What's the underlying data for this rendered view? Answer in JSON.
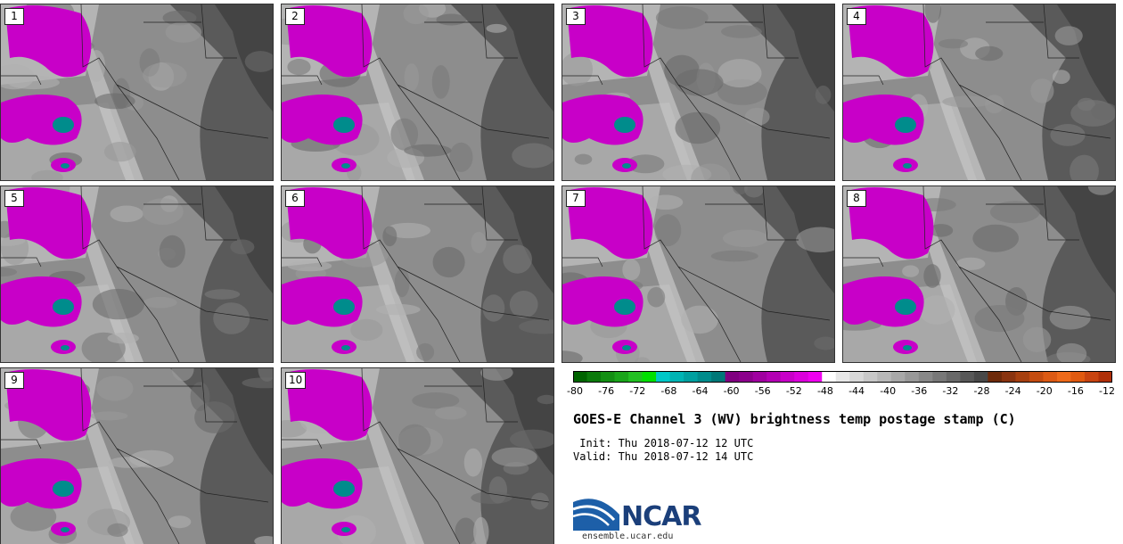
{
  "panels": [
    "1",
    "2",
    "3",
    "4",
    "5",
    "6",
    "7",
    "8",
    "9",
    "10"
  ],
  "colorbar": {
    "ticks": [
      "-80",
      "-76",
      "-72",
      "-68",
      "-64",
      "-60",
      "-56",
      "-52",
      "-48",
      "-44",
      "-40",
      "-36",
      "-32",
      "-28",
      "-24",
      "-20",
      "-16",
      "-12"
    ],
    "colors": [
      "#006400",
      "#0b7a0b",
      "#138f13",
      "#1aa51a",
      "#22c022",
      "#00e000",
      "#00c8c8",
      "#00b4b4",
      "#00a0a0",
      "#008c8c",
      "#007878",
      "#800080",
      "#8c008c",
      "#a000a0",
      "#b400b4",
      "#c800c8",
      "#dc00dc",
      "#f000f0",
      "#ffffff",
      "#e8e8e8",
      "#d8d8d8",
      "#c8c8c8",
      "#b8b8b8",
      "#a8a8a8",
      "#989898",
      "#888888",
      "#787878",
      "#686868",
      "#585858",
      "#484848",
      "#6e2a0a",
      "#8a3410",
      "#a64010",
      "#c44c10",
      "#dc5a14",
      "#ee6a1a",
      "#e05a10",
      "#c84410",
      "#b03008"
    ]
  },
  "title": "GOES-E Channel 3 (WV) brightness temp postage stamp (C)",
  "init_line": " Init: Thu 2018-07-12 12 UTC",
  "valid_line": "Valid: Thu 2018-07-12 14 UTC",
  "logo": {
    "text": "NCAR",
    "url": "ensemble.ucar.edu"
  }
}
